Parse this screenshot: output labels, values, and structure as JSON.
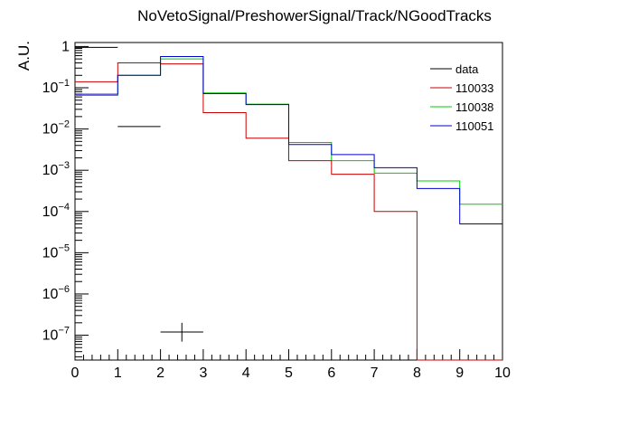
{
  "chart_data": {
    "type": "line",
    "title": "NoVetoSignal/PreshowerSignal/Track/NGoodTracks",
    "xlabel": "",
    "ylabel": "A.U.",
    "xlim": [
      0,
      10
    ],
    "ylim": [
      2.5e-08,
      1.25
    ],
    "yscale": "log",
    "grid": false,
    "legend_position": "top-right",
    "x_tick_labels": [
      "0",
      "1",
      "2",
      "3",
      "4",
      "5",
      "6",
      "7",
      "8",
      "9",
      "10"
    ],
    "y_tick_labels": [
      {
        "base": "1",
        "exp": ""
      },
      {
        "base": "10",
        "exp": "−1"
      },
      {
        "base": "10",
        "exp": "−2"
      },
      {
        "base": "10",
        "exp": "−3"
      },
      {
        "base": "10",
        "exp": "−4"
      },
      {
        "base": "10",
        "exp": "−5"
      },
      {
        "base": "10",
        "exp": "−6"
      },
      {
        "base": "10",
        "exp": "−7"
      }
    ],
    "bin_edges": [
      0,
      1,
      2,
      3,
      4,
      5,
      6,
      7,
      8,
      9,
      10
    ],
    "series": [
      {
        "name": "data",
        "color": "#000000",
        "style": "points",
        "points": [
          {
            "x": 0.5,
            "y": 0.95
          },
          {
            "x": 1.5,
            "y": 0.0115
          },
          {
            "x": 2.5,
            "y": 1.2e-07,
            "yerr_low": 5e-08,
            "yerr_high": 8e-08
          }
        ]
      },
      {
        "name": "110033",
        "color": "#cc0000",
        "style": "step",
        "values": [
          0.14,
          0.4,
          0.38,
          0.025,
          0.006,
          0.0017,
          0.0008,
          0.0001,
          0,
          0
        ]
      },
      {
        "name": "110038",
        "color": "#00cc00",
        "style": "step",
        "values": [
          0.065,
          0.2,
          0.5,
          0.075,
          0.04,
          0.0047,
          0.0017,
          0.00085,
          0.00055,
          0.00015
        ]
      },
      {
        "name": "110051",
        "color": "#0000cc",
        "style": "step",
        "values": [
          0.07,
          0.2,
          0.57,
          0.072,
          0.039,
          0.0042,
          0.0024,
          0.00115,
          0.00036,
          5e-05
        ]
      }
    ]
  }
}
